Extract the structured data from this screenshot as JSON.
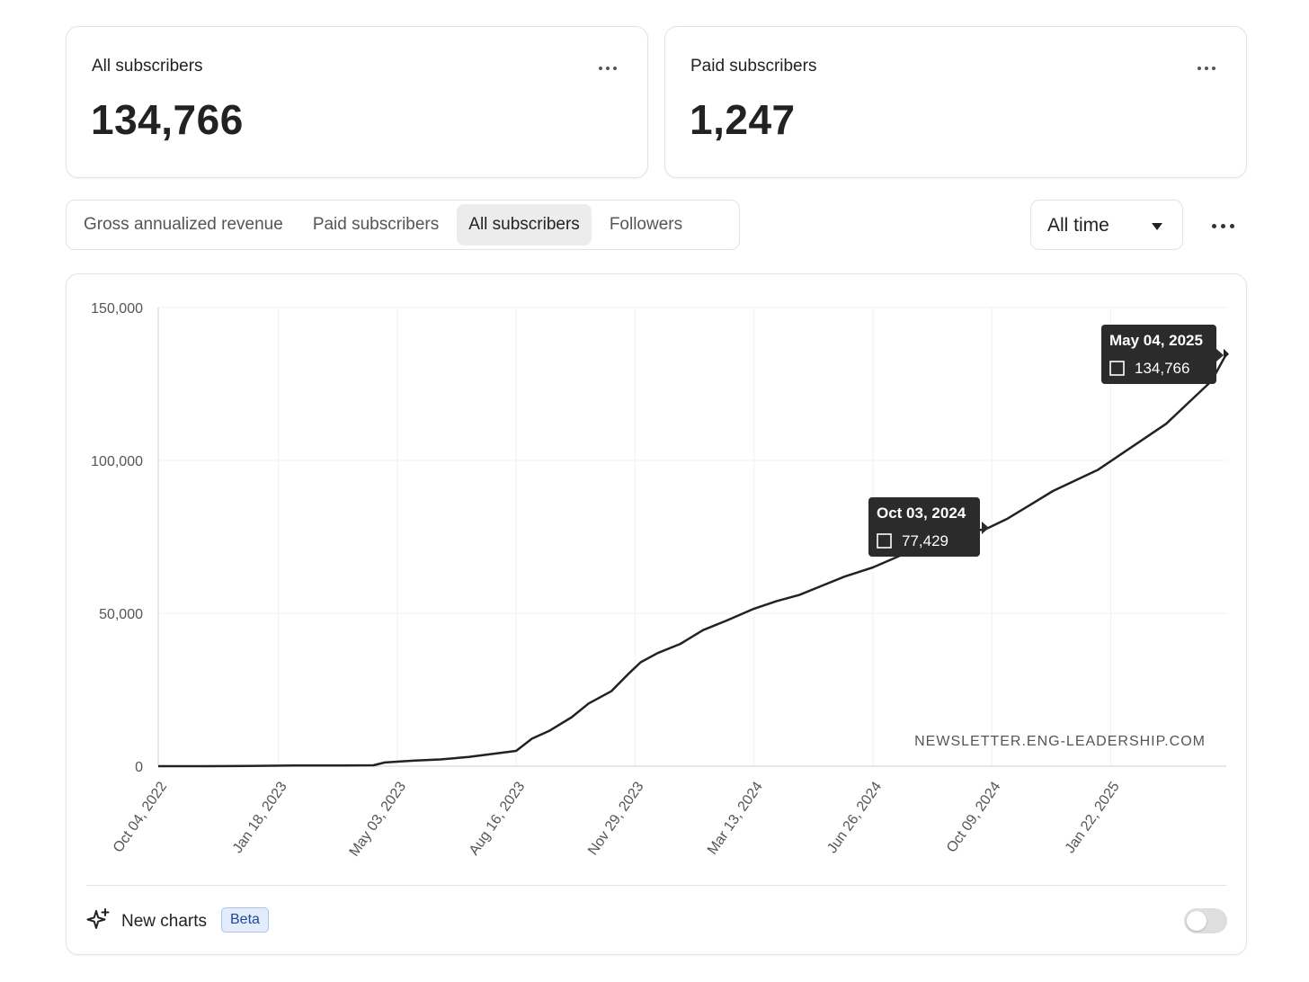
{
  "stats": [
    {
      "title": "All subscribers",
      "value": "134,766"
    },
    {
      "title": "Paid subscribers",
      "value": "1,247"
    }
  ],
  "tabs": [
    {
      "label": "Gross annualized revenue",
      "active": false
    },
    {
      "label": "Paid subscribers",
      "active": false
    },
    {
      "label": "All subscribers",
      "active": true
    },
    {
      "label": "Followers",
      "active": false
    }
  ],
  "range_select": {
    "value": "All time"
  },
  "chart_data": {
    "type": "line",
    "series": [
      {
        "x": [
          "2022-10-04",
          "2022-11-13",
          "2022-12-23",
          "2023-02-01",
          "2023-03-13",
          "2023-04-12",
          "2023-04-22",
          "2023-05-17",
          "2023-06-10",
          "2023-07-05",
          "2023-07-30",
          "2023-08-16",
          "2023-08-30",
          "2023-09-14",
          "2023-10-04",
          "2023-10-19",
          "2023-11-08",
          "2023-11-24",
          "2023-12-04",
          "2023-12-19",
          "2024-01-08",
          "2024-01-28",
          "2024-02-17",
          "2024-03-13",
          "2024-04-02",
          "2024-04-22",
          "2024-05-12",
          "2024-06-01",
          "2024-06-26",
          "2024-07-21",
          "2024-08-15",
          "2024-09-09",
          "2024-10-03",
          "2024-10-23",
          "2024-11-12",
          "2024-12-02",
          "2024-12-22",
          "2025-01-11",
          "2025-01-31",
          "2025-02-20",
          "2025-03-12",
          "2025-04-01",
          "2025-04-21",
          "2025-05-04"
        ],
        "y": [
          0,
          0,
          100,
          200,
          200,
          300,
          1200,
          1800,
          2200,
          3000,
          4200,
          5000,
          9000,
          11500,
          16000,
          20500,
          24500,
          30500,
          34000,
          37000,
          40000,
          44500,
          47500,
          51500,
          54000,
          56000,
          59000,
          62000,
          65000,
          69000,
          73000,
          76500,
          77429,
          81000,
          85500,
          90000,
          93500,
          97000,
          102000,
          107000,
          112000,
          119000,
          126000,
          134766
        ]
      }
    ],
    "ylim": [
      0,
      150000
    ],
    "yticks": [
      "0",
      "50,000",
      "100,000",
      "150,000"
    ],
    "xticks": [
      "Oct 04, 2022",
      "Jan 18, 2023",
      "May 03, 2023",
      "Aug 16, 2023",
      "Nov 29, 2023",
      "Mar 13, 2024",
      "Jun 26, 2024",
      "Oct 09, 2024",
      "Jan 22, 2025"
    ],
    "grid": true,
    "annotations": [
      {
        "date": "Oct 03, 2024",
        "value": "77,429",
        "x": "2024-10-03",
        "y": 77429
      },
      {
        "date": "May 04, 2025",
        "value": "134,766",
        "x": "2025-05-04",
        "y": 134766
      }
    ],
    "watermark": "NEWSLETTER.ENG-LEADERSHIP.COM"
  },
  "footer": {
    "label": "New charts",
    "badge": "Beta",
    "toggle_on": false
  },
  "colors": {
    "line": "#222222",
    "tooltip_bg": "#2b2b2b",
    "badge_bg": "#e3ecfb",
    "badge_text": "#1f4a93"
  }
}
